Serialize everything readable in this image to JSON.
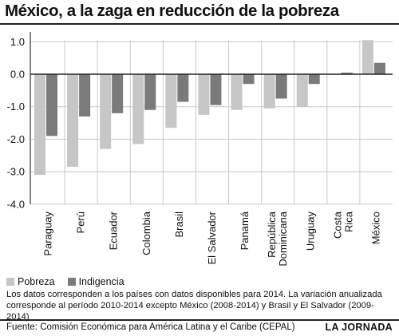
{
  "chart_data": {
    "type": "bar",
    "title": "México, a la zaga en reducción de la pobreza",
    "xlabel": "",
    "ylabel": "",
    "ylim": [
      -4.0,
      1.2
    ],
    "yticks": [
      "1.0",
      "0.0",
      "-1.0",
      "-2.0",
      "-3.0",
      "-4.0"
    ],
    "grid": true,
    "legend_position": "bottom-left",
    "categories": [
      [
        "Paraguay"
      ],
      [
        "Perú"
      ],
      [
        "Ecuador"
      ],
      [
        "Colombia"
      ],
      [
        "Brasil"
      ],
      [
        "El Salvador"
      ],
      [
        "Panamá"
      ],
      [
        "República",
        "Dominicana"
      ],
      [
        "Uruguay"
      ],
      [
        "Costa",
        "Rica"
      ],
      [
        "México"
      ]
    ],
    "series": [
      {
        "name": "Pobreza",
        "color": "#c6c6c6",
        "values": [
          -3.1,
          -2.85,
          -2.3,
          -2.15,
          -1.65,
          -1.25,
          -1.1,
          -1.05,
          -1.0,
          0.0,
          1.05
        ]
      },
      {
        "name": "Indigencia",
        "color": "#7a7a7a",
        "values": [
          -1.9,
          -1.3,
          -1.2,
          -1.1,
          -0.85,
          -0.95,
          -0.3,
          -0.75,
          -0.3,
          0.05,
          0.35
        ]
      }
    ]
  },
  "note": "Los datos corresponden a los países con datos disponibles para 2014. La variación anualizada corresponde al período 2010-2014 excepto México (2008-2014) y Brasil y El Salvador (2009-2014)",
  "source": "Fuente: Comisión Económica para América Latina y el Caribe (CEPAL)",
  "brand": "LA JORNADA"
}
